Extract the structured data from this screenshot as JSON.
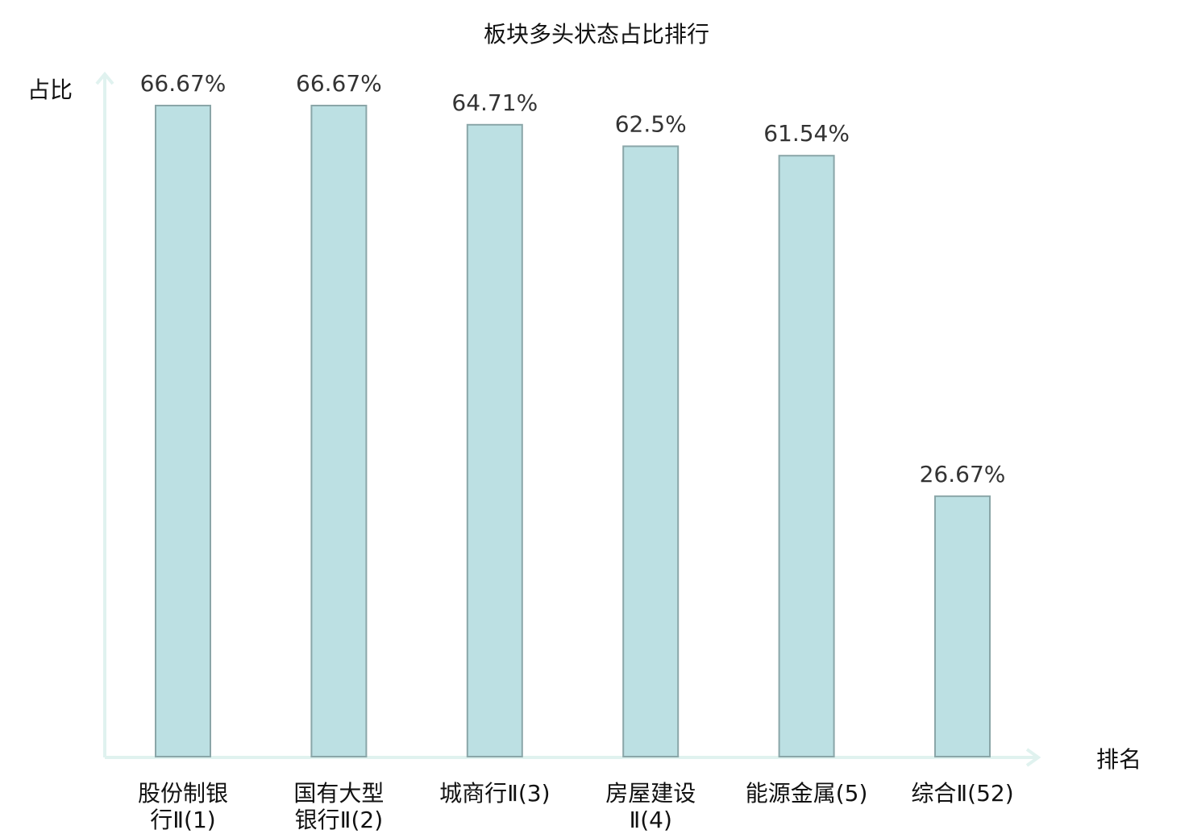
{
  "chart_data": {
    "type": "bar",
    "title": "板块多头状态占比排行",
    "ylabel": "占比",
    "xlabel": "排名",
    "ylim": [
      0,
      70
    ],
    "grid": false,
    "categories": [
      [
        "股份制银",
        "行Ⅱ(1)"
      ],
      [
        "国有大型",
        "银行Ⅱ(2)"
      ],
      [
        "城商行Ⅱ(3)"
      ],
      [
        "房屋建设",
        "Ⅱ(4)"
      ],
      [
        "能源金属(5)"
      ],
      [
        "综合Ⅱ(52)"
      ]
    ],
    "values": [
      66.67,
      66.67,
      64.71,
      62.5,
      61.54,
      26.67
    ],
    "value_labels": [
      "66.67%",
      "66.67%",
      "64.71%",
      "62.5%",
      "61.54%",
      "26.67%"
    ],
    "highlight_index": 5,
    "colors": {
      "bar_fill": "#bce0e3",
      "bar_stroke": "#8aa6a8",
      "axis": "#e0f2ef",
      "highlight_label": "#e02020",
      "text": "#111111",
      "value_text": "#333333"
    }
  }
}
